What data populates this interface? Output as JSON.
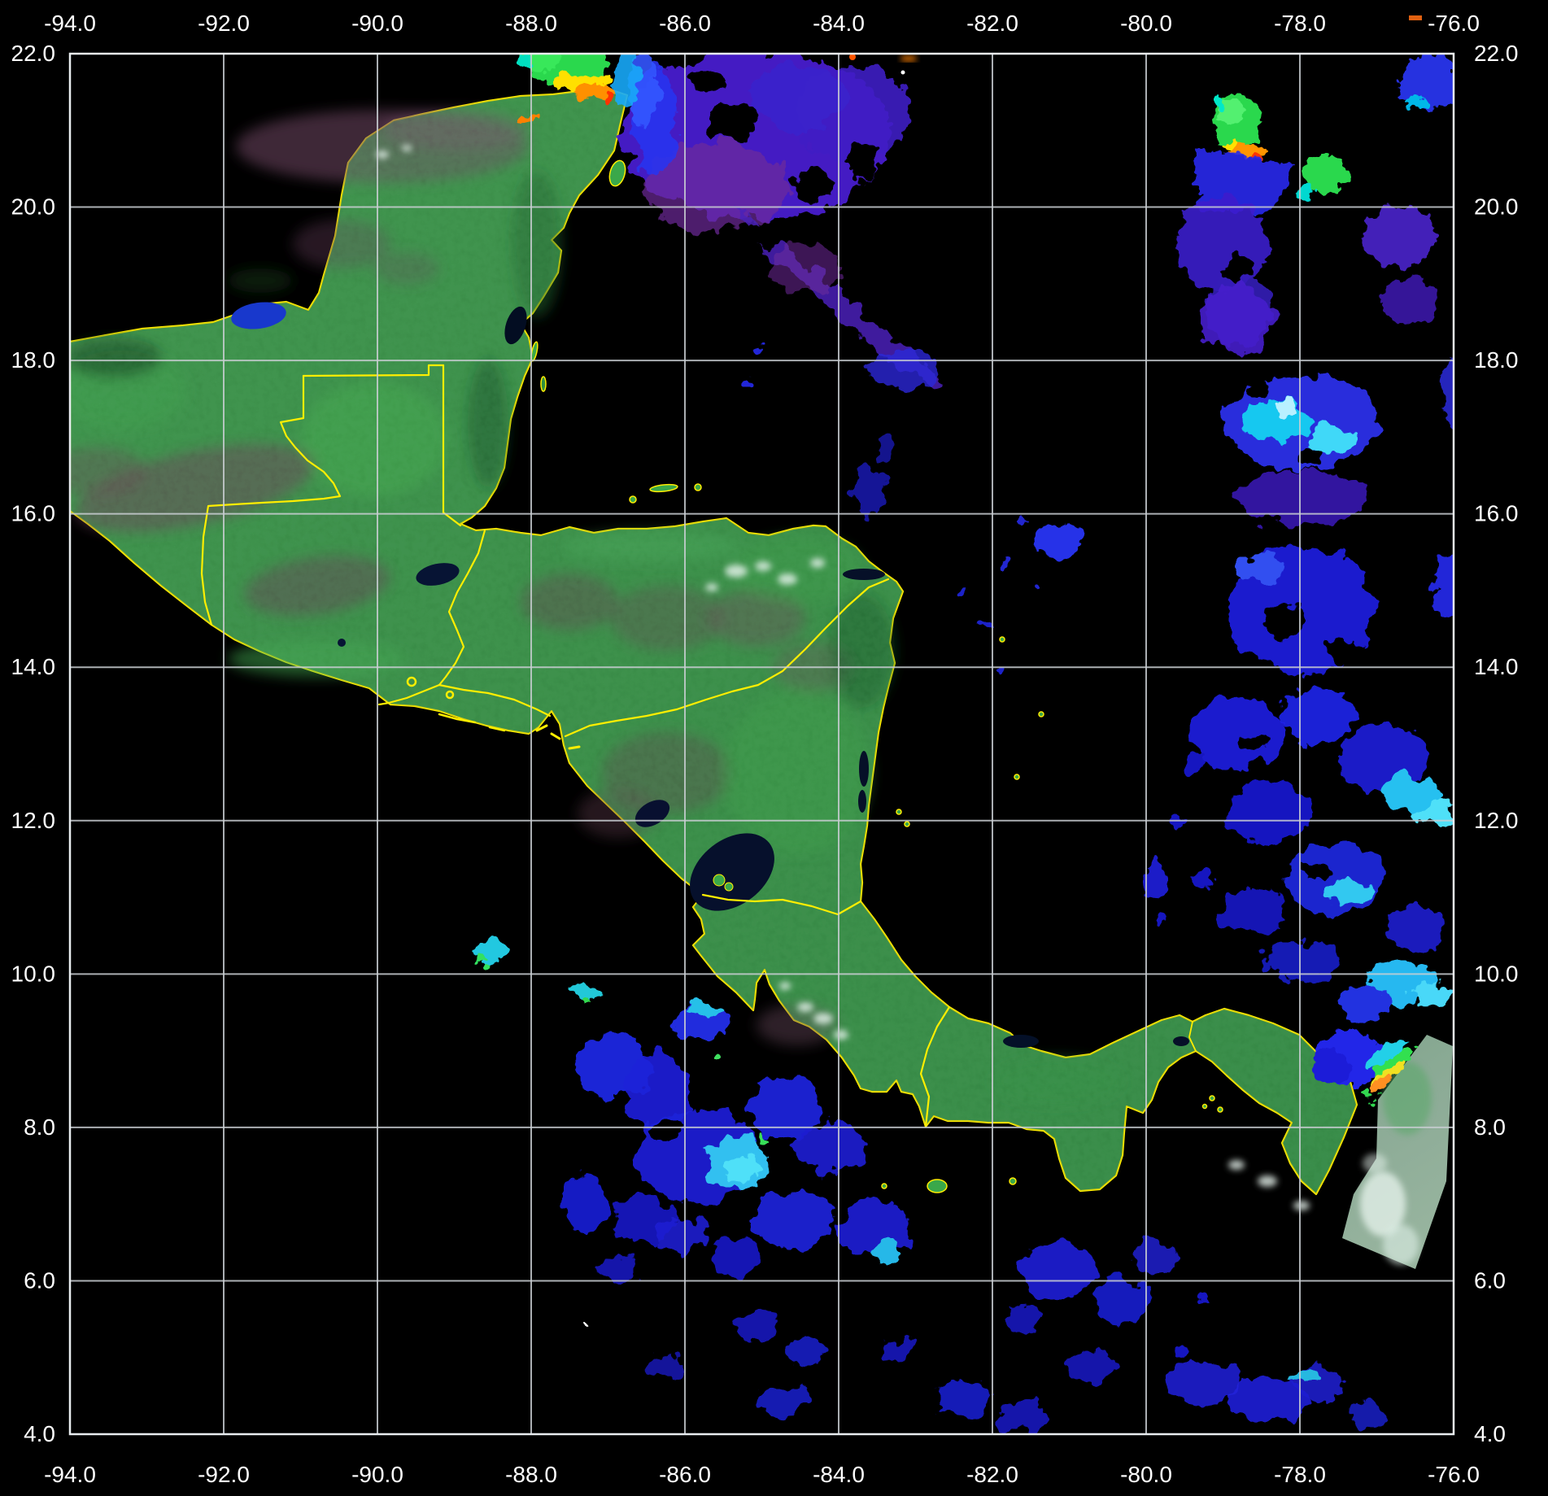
{
  "figure": {
    "kind": "satellite-false-color-composite-map",
    "region": "Central America and adjacent Caribbean / Pacific",
    "background_color": "#000000",
    "grid_color": "#c9ced3",
    "frame_color": "#e9edf0",
    "tick_label_color": "#ffffff",
    "country_border_color": "#ffee00",
    "axes": {
      "lon_ticks": [
        "-94.0",
        "-92.0",
        "-90.0",
        "-88.0",
        "-86.0",
        "-84.0",
        "-82.0",
        "-80.0",
        "-78.0",
        "-76.0"
      ],
      "lon_values": [
        -94,
        -92,
        -90,
        -88,
        -86,
        -84,
        -82,
        -80,
        -78,
        -76
      ],
      "lat_ticks": [
        "22.0",
        "20.0",
        "18.0",
        "16.0",
        "14.0",
        "12.0",
        "10.0",
        "8.0",
        "6.0",
        "4.0"
      ],
      "lat_values": [
        22,
        20,
        18,
        16,
        14,
        12,
        10,
        8,
        6,
        4
      ],
      "lon_range": [
        -94,
        -76
      ],
      "lat_range": [
        4,
        22
      ],
      "tick_label_sides": [
        "top",
        "bottom",
        "left",
        "right"
      ]
    },
    "palette": {
      "land_green": "#3f9f4e",
      "land_bright_green": "#4cc05a",
      "highland_maroon": "#7a4a62",
      "lake_navy": "#071230",
      "lagoon_blue": "#1838cc",
      "cloud_royal_blue": "#1a1ae0",
      "cloud_indigo": "#4a1fd4",
      "cloud_purple_maroon": "#6e2a9a",
      "cloud_cyan": "#2cc8f0",
      "cloud_bright_cyan": "#58e8f8",
      "cloud_green": "#2cd84e",
      "cloud_yellow": "#ffe000",
      "cloud_orange": "#ff9000",
      "cloud_red": "#ff3000",
      "colombia_swath": "#9dbfa8"
    }
  }
}
